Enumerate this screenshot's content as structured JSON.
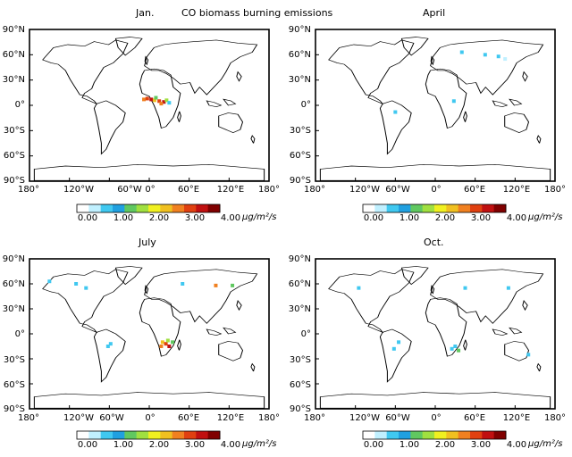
{
  "header": {
    "left": "Jan.",
    "center": "CO biomass burning emissions",
    "right": "April"
  },
  "panel_titles": {
    "jul": "July",
    "oct": "Oct."
  },
  "lat_labels": [
    "90°N",
    "60°N",
    "30°N",
    "0°",
    "30°S",
    "60°S",
    "90°S"
  ],
  "lon_labels": [
    "180°",
    "120°W",
    "60°W",
    "0°",
    "60°E",
    "120°E",
    "180°"
  ],
  "colorbar": {
    "labels": [
      "0.00",
      "1.00",
      "2.00",
      "3.00",
      "4.00"
    ],
    "unit": "μg/m²/s",
    "colors": [
      "#ffffff",
      "#c0f0ff",
      "#40c8f0",
      "#20a0e0",
      "#60c860",
      "#a0e040",
      "#f0f020",
      "#f0c020",
      "#f08020",
      "#e04010",
      "#c01010",
      "#800000"
    ]
  },
  "colors": {
    "land_outline": "#000000",
    "background": "#ffffff"
  },
  "hotspots": {
    "jan": [
      [
        -8,
        7,
        "#f08020"
      ],
      [
        -3,
        8,
        "#e04010"
      ],
      [
        3,
        7,
        "#c01010"
      ],
      [
        8,
        6,
        "#f0c020"
      ],
      [
        15,
        5,
        "#e04010"
      ],
      [
        22,
        4,
        "#c01010"
      ],
      [
        18,
        2,
        "#f08020"
      ],
      [
        26,
        6,
        "#a0e040"
      ],
      [
        30,
        3,
        "#40c8f0"
      ],
      [
        10,
        9,
        "#60c860"
      ]
    ],
    "apr": [
      [
        40,
        63,
        "#40c8f0"
      ],
      [
        75,
        60,
        "#40c8f0"
      ],
      [
        95,
        58,
        "#40c8f0"
      ],
      [
        105,
        55,
        "#c0f0ff"
      ],
      [
        -60,
        -8,
        "#40c8f0"
      ],
      [
        28,
        5,
        "#40c8f0"
      ]
    ],
    "jul": [
      [
        -150,
        63,
        "#40c8f0"
      ],
      [
        -110,
        60,
        "#40c8f0"
      ],
      [
        -95,
        55,
        "#40c8f0"
      ],
      [
        50,
        60,
        "#40c8f0"
      ],
      [
        100,
        58,
        "#f08020"
      ],
      [
        125,
        58,
        "#60c860"
      ],
      [
        -58,
        -12,
        "#40c8f0"
      ],
      [
        -62,
        -15,
        "#40c8f0"
      ],
      [
        20,
        -10,
        "#f0c020"
      ],
      [
        25,
        -12,
        "#e04010"
      ],
      [
        30,
        -15,
        "#c01010"
      ],
      [
        18,
        -15,
        "#f08020"
      ],
      [
        35,
        -10,
        "#60c860"
      ],
      [
        28,
        -8,
        "#a0e040"
      ]
    ],
    "oct": [
      [
        -115,
        55,
        "#40c8f0"
      ],
      [
        45,
        55,
        "#40c8f0"
      ],
      [
        110,
        55,
        "#40c8f0"
      ],
      [
        -55,
        -10,
        "#40c8f0"
      ],
      [
        -62,
        -18,
        "#40c8f0"
      ],
      [
        30,
        -15,
        "#40c8f0"
      ],
      [
        35,
        -20,
        "#60c860"
      ],
      [
        25,
        -18,
        "#40c8f0"
      ],
      [
        140,
        -25,
        "#40c8f0"
      ]
    ]
  }
}
